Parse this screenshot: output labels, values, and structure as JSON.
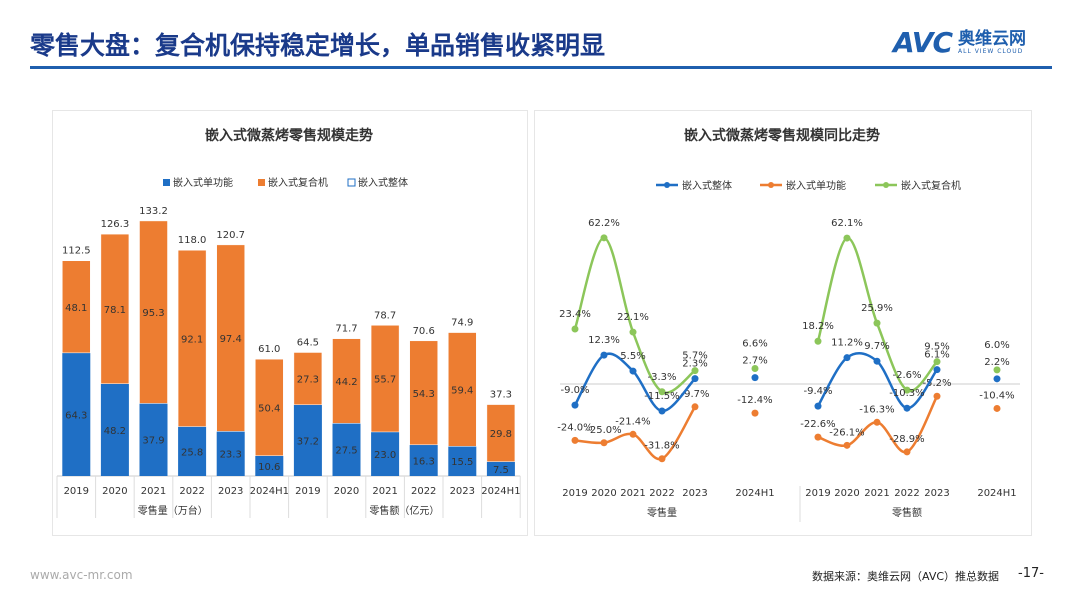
{
  "header": {
    "title": "零售大盘：复合机保持稳定增长，单品销售收紧明显",
    "logo_text": "AVC",
    "logo_cn": "奥维云网",
    "logo_en": "ALL VIEW CLOUD"
  },
  "footer": {
    "website": "www.avc-mr.com",
    "source": "数据来源：奥维云网（AVC）推总数据",
    "page": "-17-"
  },
  "colors": {
    "single": "#1f6fc5",
    "composite": "#ed7d31",
    "total": "#1f6fc5",
    "composite_line": "#8cc65a",
    "title": "#1a3a8a"
  },
  "chart_data": [
    {
      "type": "bar",
      "stacked": true,
      "title": "嵌入式微蒸烤零售规模走势",
      "legend": [
        "嵌入式单功能",
        "嵌入式复合机",
        "嵌入式整体"
      ],
      "legend_position": "top",
      "groups": [
        {
          "label": "零售量（万台）",
          "categories": [
            "2019",
            "2020",
            "2021",
            "2022",
            "2023",
            "2024H1"
          ],
          "single": [
            64.3,
            48.2,
            37.9,
            25.8,
            23.3,
            10.6
          ],
          "composite": [
            48.1,
            78.1,
            95.3,
            92.1,
            97.4,
            50.4
          ],
          "total": [
            112.5,
            126.3,
            133.2,
            118.0,
            120.7,
            61.0
          ]
        },
        {
          "label": "零售额（亿元）",
          "categories": [
            "2019",
            "2020",
            "2021",
            "2022",
            "2023",
            "2024H1"
          ],
          "single": [
            37.2,
            27.5,
            23.0,
            16.3,
            15.5,
            7.5
          ],
          "composite": [
            27.3,
            44.2,
            55.7,
            54.3,
            59.4,
            29.8
          ],
          "total": [
            64.5,
            71.7,
            78.7,
            70.6,
            74.9,
            37.3
          ]
        }
      ]
    },
    {
      "type": "line",
      "title": "嵌入式微蒸烤零售规模同比走势",
      "unit": "%",
      "legend": [
        "嵌入式整体",
        "嵌入式单功能",
        "嵌入式复合机"
      ],
      "legend_position": "top",
      "groups": [
        {
          "label": "零售量",
          "categories": [
            "2019",
            "2020",
            "2021",
            "2022",
            "2023",
            "2024H1"
          ],
          "total": [
            -9.0,
            12.3,
            5.5,
            -11.5,
            2.3,
            2.7
          ],
          "single": [
            -24.0,
            -25.0,
            -21.4,
            -31.8,
            -9.7,
            -12.4
          ],
          "composite": [
            23.4,
            62.2,
            22.1,
            -3.3,
            5.7,
            6.6
          ]
        },
        {
          "label": "零售额",
          "categories": [
            "2019",
            "2020",
            "2021",
            "2022",
            "2023",
            "2024H1"
          ],
          "total": [
            -9.4,
            11.2,
            9.7,
            -10.3,
            6.1,
            2.2
          ],
          "single": [
            -22.6,
            -26.1,
            -16.3,
            -28.9,
            -5.2,
            -10.4
          ],
          "composite": [
            18.2,
            62.1,
            25.9,
            -2.6,
            9.5,
            6.0
          ]
        }
      ]
    }
  ]
}
